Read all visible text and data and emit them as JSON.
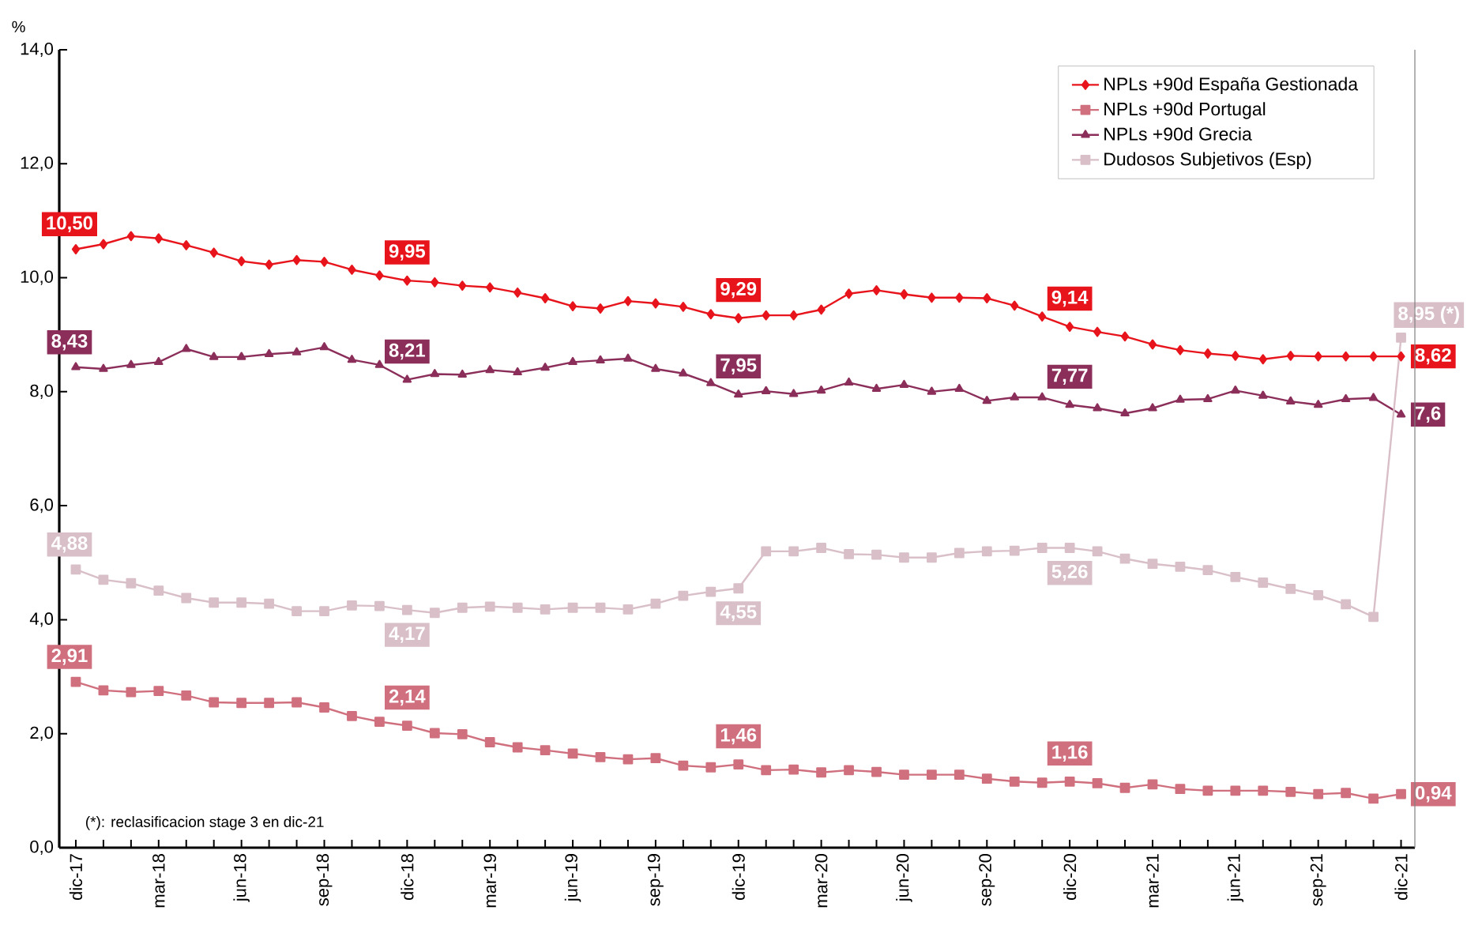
{
  "chart_data": {
    "type": "line",
    "ylabel": "%",
    "categories": [
      "dic-17",
      null,
      null,
      "mar-18",
      null,
      null,
      "jun-18",
      null,
      null,
      "sep-18",
      null,
      null,
      "dic-18",
      null,
      null,
      "mar-19",
      null,
      null,
      "jun-19",
      null,
      null,
      "sep-19",
      null,
      null,
      "dic-19",
      null,
      null,
      "mar-20",
      null,
      null,
      "jun-20",
      null,
      null,
      "sep-20",
      null,
      null,
      "dic-20",
      null,
      null,
      "mar-21",
      null,
      null,
      "jun-21",
      null,
      null,
      "sep-21",
      null,
      null,
      "dic-21"
    ],
    "ylim": [
      0,
      14
    ],
    "yticks": [
      {
        "value": 0,
        "label": "0,0"
      },
      {
        "value": 2,
        "label": "2,0"
      },
      {
        "value": 4,
        "label": "4,0"
      },
      {
        "value": 6,
        "label": "6,0"
      },
      {
        "value": 8,
        "label": "8,0"
      },
      {
        "value": 10,
        "label": "10,0"
      },
      {
        "value": 12,
        "label": "12,0"
      },
      {
        "value": 14,
        "label": "14,0"
      }
    ],
    "legend": "top right",
    "annotations": [
      "(*): reclasificacion stage 3 en dic-21"
    ],
    "series": [
      {
        "name": "NPLs +90d España Gestionada",
        "color": "#e8141c",
        "marker": "diamond",
        "values": [
          10.5,
          10.59,
          10.73,
          10.69,
          10.57,
          10.44,
          10.29,
          10.23,
          10.31,
          10.28,
          10.14,
          10.04,
          9.95,
          9.92,
          9.86,
          9.83,
          9.74,
          9.64,
          9.5,
          9.46,
          9.59,
          9.55,
          9.49,
          9.36,
          9.29,
          9.34,
          9.34,
          9.44,
          9.72,
          9.78,
          9.71,
          9.65,
          9.65,
          9.64,
          9.51,
          9.32,
          9.14,
          9.05,
          8.97,
          8.83,
          8.73,
          8.67,
          8.63,
          8.57,
          8.63,
          8.62,
          8.62,
          8.62,
          8.62
        ],
        "value_labels": [
          "10,50",
          null,
          null,
          null,
          null,
          null,
          null,
          null,
          null,
          null,
          null,
          null,
          "9,95",
          null,
          null,
          null,
          null,
          null,
          null,
          null,
          null,
          null,
          null,
          null,
          "9,29",
          null,
          null,
          null,
          null,
          null,
          null,
          null,
          null,
          null,
          null,
          null,
          "9,14",
          null,
          null,
          null,
          null,
          null,
          null,
          null,
          null,
          null,
          null,
          null,
          "8,62"
        ]
      },
      {
        "name": "NPLs +90d Portugal",
        "color": "#d0707e",
        "marker": "square",
        "values": [
          2.91,
          2.76,
          2.73,
          2.75,
          2.67,
          2.55,
          2.54,
          2.54,
          2.55,
          2.46,
          2.31,
          2.21,
          2.14,
          2.01,
          1.99,
          1.85,
          1.76,
          1.71,
          1.65,
          1.59,
          1.55,
          1.57,
          1.44,
          1.41,
          1.46,
          1.36,
          1.37,
          1.32,
          1.36,
          1.33,
          1.28,
          1.28,
          1.28,
          1.21,
          1.16,
          1.14,
          1.16,
          1.13,
          1.05,
          1.11,
          1.03,
          1.0,
          1.0,
          1.0,
          0.98,
          0.94,
          0.96,
          0.86,
          0.94
        ],
        "value_labels": [
          "2,91",
          null,
          null,
          null,
          null,
          null,
          null,
          null,
          null,
          null,
          null,
          null,
          "2,14",
          null,
          null,
          null,
          null,
          null,
          null,
          null,
          null,
          null,
          null,
          null,
          "1,46",
          null,
          null,
          null,
          null,
          null,
          null,
          null,
          null,
          null,
          null,
          null,
          "1,16",
          null,
          null,
          null,
          null,
          null,
          null,
          null,
          null,
          null,
          null,
          null,
          "0,94"
        ]
      },
      {
        "name": "NPLs +90d Grecia",
        "color": "#8b2e5a",
        "marker": "triangle",
        "values": [
          8.43,
          8.4,
          8.47,
          8.52,
          8.75,
          8.61,
          8.61,
          8.66,
          8.69,
          8.78,
          8.56,
          8.47,
          8.21,
          8.31,
          8.3,
          8.38,
          8.34,
          8.42,
          8.52,
          8.55,
          8.58,
          8.4,
          8.32,
          8.15,
          7.95,
          8.01,
          7.96,
          8.02,
          8.16,
          8.05,
          8.12,
          8.0,
          8.05,
          7.84,
          7.9,
          7.9,
          7.77,
          7.71,
          7.62,
          7.71,
          7.86,
          7.87,
          8.02,
          7.93,
          7.83,
          7.77,
          7.87,
          7.89,
          7.6
        ],
        "value_labels": [
          "8,43",
          null,
          null,
          null,
          null,
          null,
          null,
          null,
          null,
          null,
          null,
          null,
          "8,21",
          null,
          null,
          null,
          null,
          null,
          null,
          null,
          null,
          null,
          null,
          null,
          "7,95",
          null,
          null,
          null,
          null,
          null,
          null,
          null,
          null,
          null,
          null,
          null,
          "7,77",
          null,
          null,
          null,
          null,
          null,
          null,
          null,
          null,
          null,
          null,
          null,
          "7,6"
        ]
      },
      {
        "name": "Dudosos Subjetivos (Esp)",
        "color": "#d9bfc8",
        "marker": "square",
        "values": [
          4.88,
          4.7,
          4.64,
          4.51,
          4.38,
          4.3,
          4.3,
          4.28,
          4.15,
          4.15,
          4.25,
          4.24,
          4.17,
          4.12,
          4.21,
          4.23,
          4.21,
          4.18,
          4.21,
          4.21,
          4.18,
          4.28,
          4.42,
          4.49,
          4.55,
          5.2,
          5.2,
          5.26,
          5.15,
          5.14,
          5.09,
          5.09,
          5.17,
          5.2,
          5.21,
          5.26,
          5.26,
          5.2,
          5.07,
          4.98,
          4.93,
          4.87,
          4.75,
          4.65,
          4.54,
          4.43,
          4.27,
          4.05,
          8.95
        ],
        "value_labels": [
          "4,88",
          null,
          null,
          null,
          null,
          null,
          null,
          null,
          null,
          null,
          null,
          null,
          "4,17",
          null,
          null,
          null,
          null,
          null,
          null,
          null,
          null,
          null,
          null,
          null,
          "4,55",
          null,
          null,
          null,
          null,
          null,
          null,
          null,
          null,
          null,
          null,
          null,
          "5,26",
          null,
          null,
          null,
          null,
          null,
          null,
          null,
          null,
          null,
          null,
          null,
          "8,95 (*)"
        ]
      }
    ]
  }
}
